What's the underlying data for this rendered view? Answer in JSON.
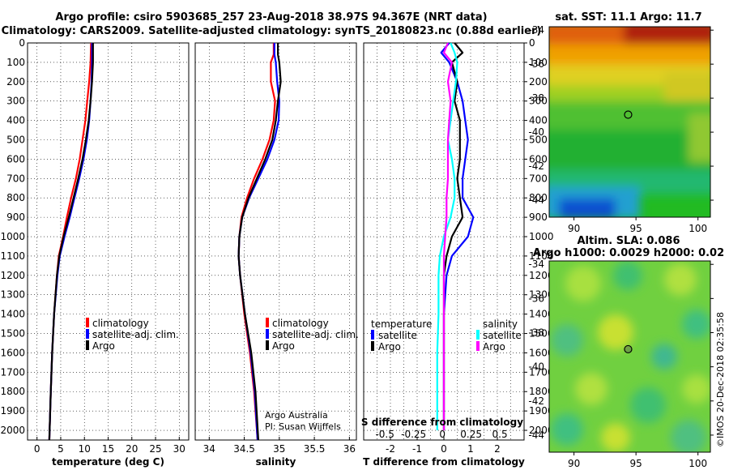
{
  "header": {
    "line1": "Argo profile: csiro 5903685_257 23-Aug-2018 38.97S 94.367E (NRT data)",
    "line2": "Climatology: CARS2009. Satellite-adjusted climatology: synTS_20180823.nc (0.88d earlier)"
  },
  "credits": {
    "argo_australia": "Argo Australia",
    "pi": "PI: Susan Wijffels",
    "imos": "©IMOS 20-Dec-2018 02:35:58"
  },
  "colors": {
    "climatology": "#ff0000",
    "satellite": "#0000ff",
    "argo": "#000000",
    "s_satellite": "#00ffff",
    "s_argo": "#ff00ff"
  },
  "chart_data": [
    {
      "type": "line",
      "id": "temperature",
      "xlabel": "temperature (deg C)",
      "ylabel": "",
      "xlim": [
        -2,
        32
      ],
      "ylim": [
        0,
        2050
      ],
      "xticks": [
        "0",
        "5",
        "10",
        "15",
        "20",
        "25",
        "30"
      ],
      "xtick_values": [
        0,
        5,
        10,
        15,
        20,
        25,
        30
      ],
      "yticks": [
        "0",
        "100",
        "200",
        "300",
        "400",
        "500",
        "600",
        "700",
        "800",
        "900",
        "1000",
        "1100",
        "1200",
        "1300",
        "1400",
        "1500",
        "1600",
        "1700",
        "1800",
        "1900",
        "2000"
      ],
      "ytick_values": [
        0,
        100,
        200,
        300,
        400,
        500,
        600,
        700,
        800,
        900,
        1000,
        1100,
        1200,
        1300,
        1400,
        1500,
        1600,
        1700,
        1800,
        1900,
        2000
      ],
      "legend": [
        "climatology",
        "satellite-adj. clim.",
        "Argo"
      ],
      "series": [
        {
          "name": "climatology",
          "color": "#ff0000",
          "depth": [
            0,
            100,
            200,
            300,
            400,
            500,
            600,
            700,
            800,
            900,
            1000,
            1100,
            1200,
            1400,
            1600,
            1800,
            2050
          ],
          "values": [
            11.4,
            11.3,
            11.0,
            10.6,
            10.2,
            9.6,
            9.0,
            8.2,
            7.2,
            6.3,
            5.5,
            4.6,
            4.2,
            3.6,
            3.2,
            2.9,
            2.6
          ]
        },
        {
          "name": "satellite-adj. clim.",
          "color": "#0000ff",
          "depth": [
            0,
            100,
            200,
            300,
            400,
            500,
            600,
            700,
            800,
            900,
            1000,
            1100,
            1200,
            1400,
            1600,
            1800,
            2050
          ],
          "values": [
            11.6,
            11.6,
            11.5,
            11.3,
            11.0,
            10.5,
            9.8,
            8.9,
            7.9,
            6.9,
            5.8,
            4.8,
            4.3,
            3.6,
            3.2,
            2.9,
            2.6
          ]
        },
        {
          "name": "Argo",
          "color": "#000000",
          "depth": [
            0,
            100,
            200,
            300,
            400,
            500,
            600,
            700,
            800,
            900,
            1000,
            1100,
            1200,
            1400,
            1600,
            1800,
            2050
          ],
          "values": [
            11.8,
            11.8,
            11.6,
            11.3,
            10.9,
            10.3,
            9.6,
            8.7,
            7.7,
            6.7,
            5.6,
            4.7,
            4.2,
            3.6,
            3.2,
            2.9,
            2.6
          ]
        }
      ]
    },
    {
      "type": "line",
      "id": "salinity",
      "xlabel": "salinity",
      "xlim": [
        33.8,
        36.1
      ],
      "ylim": [
        0,
        2050
      ],
      "xticks": [
        "34",
        "34.5",
        "35",
        "35.5",
        "36"
      ],
      "xtick_values": [
        34,
        34.5,
        35,
        35.5,
        36
      ],
      "legend": [
        "climatology",
        "satellite-adj. clim.",
        "Argo"
      ],
      "series": [
        {
          "name": "climatology",
          "color": "#ff0000",
          "depth": [
            0,
            60,
            100,
            200,
            300,
            400,
            500,
            600,
            700,
            800,
            900,
            1000,
            1100,
            1200,
            1400,
            1600,
            1800,
            2050
          ],
          "values": [
            34.92,
            34.92,
            34.88,
            34.88,
            34.94,
            34.92,
            34.86,
            34.76,
            34.64,
            34.54,
            34.46,
            34.43,
            34.42,
            34.44,
            34.5,
            34.58,
            34.64,
            34.69
          ]
        },
        {
          "name": "satellite-adj. clim.",
          "color": "#0000ff",
          "depth": [
            0,
            60,
            100,
            200,
            300,
            400,
            500,
            600,
            700,
            800,
            900,
            1000,
            1100,
            1200,
            1400,
            1600,
            1800,
            2050
          ],
          "values": [
            34.93,
            34.93,
            34.95,
            34.97,
            35.0,
            34.99,
            34.93,
            34.83,
            34.7,
            34.57,
            34.47,
            34.43,
            34.42,
            34.44,
            34.51,
            34.59,
            34.65,
            34.69
          ]
        },
        {
          "name": "Argo",
          "color": "#000000",
          "depth": [
            0,
            60,
            100,
            200,
            300,
            400,
            500,
            600,
            700,
            800,
            900,
            1000,
            1100,
            1200,
            1400,
            1600,
            1800,
            2050
          ],
          "values": [
            34.98,
            34.98,
            35.0,
            35.02,
            34.98,
            34.95,
            34.9,
            34.8,
            34.68,
            34.56,
            34.47,
            34.43,
            34.42,
            34.44,
            34.51,
            34.6,
            34.66,
            34.7
          ]
        }
      ]
    },
    {
      "type": "line",
      "id": "differences",
      "xlabel": "T difference from climatology",
      "top_axis_title": "S difference from climatology",
      "xlim": [
        -3,
        3
      ],
      "ylim": [
        0,
        2050
      ],
      "xticks": [
        "-2",
        "-1",
        "0",
        "1",
        "2"
      ],
      "xtick_values": [
        -2,
        -1,
        0,
        1,
        2
      ],
      "s_xticks": [
        "-0.5",
        "-0.25",
        "0",
        "0.25",
        "0.5"
      ],
      "legend_temperature": {
        "title": "temperature",
        "items": [
          "satellite",
          "Argo"
        ]
      },
      "legend_salinity": {
        "title": "salinity",
        "items": [
          "satellite",
          "Argo"
        ]
      },
      "series": [
        {
          "name": "T satellite",
          "color": "#0000ff",
          "depth": [
            0,
            50,
            100,
            200,
            300,
            400,
            500,
            600,
            700,
            800,
            900,
            1000,
            1100,
            1200,
            1400,
            1600,
            1800,
            2000
          ],
          "values": [
            0.2,
            -0.1,
            0.2,
            0.5,
            0.7,
            0.8,
            0.9,
            0.8,
            0.7,
            0.7,
            1.1,
            0.9,
            0.3,
            0.1,
            0.0,
            0.0,
            0.0,
            0.0
          ]
        },
        {
          "name": "T Argo",
          "color": "#000000",
          "depth": [
            0,
            50,
            100,
            200,
            300,
            400,
            500,
            600,
            700,
            800,
            900,
            1000,
            1100,
            1200,
            1400,
            1600,
            1800,
            2000
          ],
          "values": [
            0.4,
            0.7,
            0.3,
            0.5,
            0.4,
            0.6,
            0.6,
            0.6,
            0.5,
            0.6,
            0.7,
            0.3,
            0.1,
            0.0,
            0.0,
            0.0,
            0.0,
            0.0
          ]
        },
        {
          "name": "S satellite",
          "color": "#00ffff",
          "depth": [
            0,
            50,
            100,
            200,
            300,
            400,
            500,
            600,
            700,
            800,
            900,
            1000,
            1100,
            1200,
            1400,
            1600,
            1800,
            2000
          ],
          "values": [
            0.05,
            0.08,
            0.1,
            0.09,
            0.07,
            0.05,
            0.03,
            0.06,
            0.08,
            0.08,
            0.05,
            0.0,
            -0.03,
            -0.04,
            -0.04,
            -0.05,
            -0.05,
            -0.05
          ]
        },
        {
          "name": "S Argo",
          "color": "#ff00ff",
          "depth": [
            0,
            50,
            100,
            200,
            300,
            400,
            500,
            600,
            700,
            800,
            900,
            1000,
            1100,
            1200,
            1400,
            1600,
            1800,
            2000
          ],
          "values": [
            0.03,
            0.0,
            0.06,
            0.03,
            0.05,
            0.04,
            0.03,
            0.03,
            0.03,
            0.02,
            0.02,
            0.01,
            0.0,
            0.0,
            0.0,
            0.0,
            0.0,
            0.0
          ]
        }
      ]
    },
    {
      "type": "heatmap",
      "id": "sst-map",
      "title": "sat. SST: 11.1 Argo: 11.7",
      "xticks": [
        "90",
        "95",
        "100"
      ],
      "xtick_values": [
        90,
        95,
        100
      ],
      "yticks": [
        "-34",
        "-36",
        "-38",
        "-40",
        "-42",
        "-44"
      ],
      "ytick_values": [
        -34,
        -36,
        -38,
        -40,
        -42,
        -44
      ],
      "xlim": [
        88,
        101
      ],
      "ylim": [
        -45,
        -33.8
      ],
      "float_position": [
        94.367,
        -38.97
      ]
    },
    {
      "type": "heatmap",
      "id": "sla-map",
      "title_line1": "Altim. SLA: 0.086",
      "title_line2": "Argo h1000: 0.0029 h2000: 0.02",
      "xticks": [
        "90",
        "95",
        "100"
      ],
      "xtick_values": [
        90,
        95,
        100
      ],
      "yticks": [
        "-34",
        "-36",
        "-38",
        "-40",
        "-42",
        "-44"
      ],
      "ytick_values": [
        -34,
        -36,
        -38,
        -40,
        -42,
        -44
      ],
      "xlim": [
        88,
        101
      ],
      "ylim": [
        -45,
        -33.8
      ],
      "float_position": [
        94.367,
        -38.97
      ]
    }
  ]
}
